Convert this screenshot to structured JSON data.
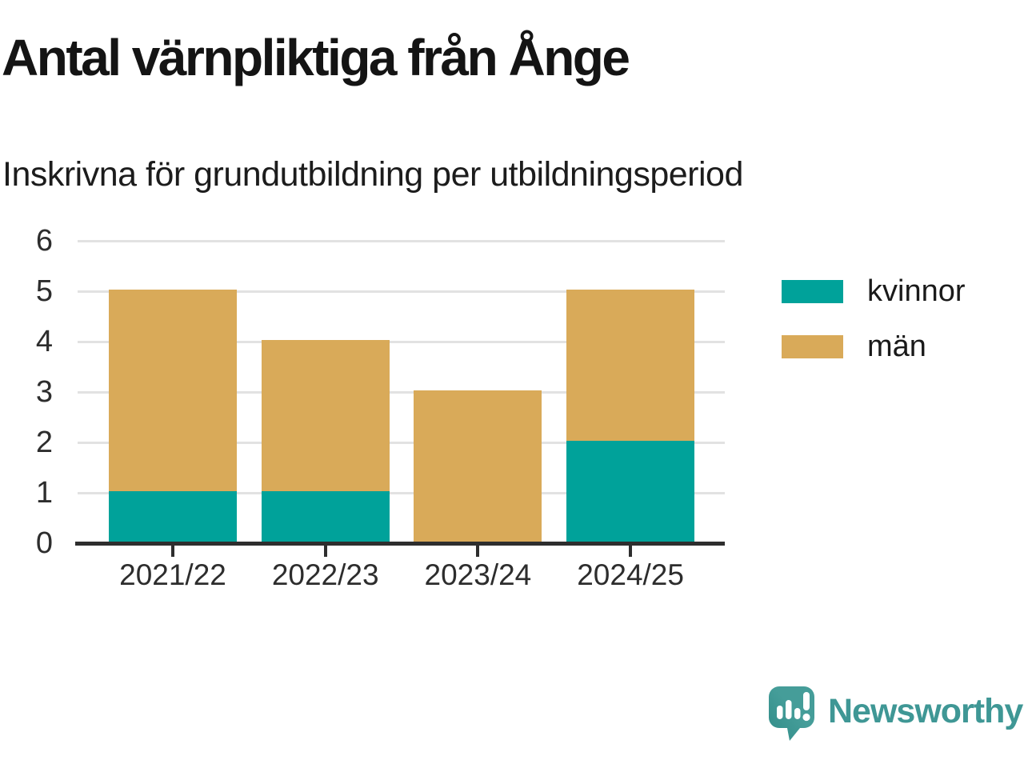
{
  "title": "Antal värnpliktiga från Ånge",
  "subtitle": "Inskrivna för grundutbildning per utbildningsperiod",
  "colors": {
    "kvinnor": "#00a29a",
    "man": "#d9aa59",
    "grid": "#e2e2e2",
    "axis": "#2e2e2e",
    "text": "#1a1a1a",
    "brand_teal": "#3f9795"
  },
  "chart_data": {
    "type": "bar",
    "stacked": true,
    "title": "Antal värnpliktiga från Ånge",
    "subtitle": "Inskrivna för grundutbildning per utbildningsperiod",
    "categories": [
      "2021/22",
      "2022/23",
      "2023/24",
      "2024/25"
    ],
    "series": [
      {
        "name": "kvinnor",
        "color": "#00a29a",
        "values": [
          1,
          1,
          0,
          2
        ]
      },
      {
        "name": "män",
        "color": "#d9aa59",
        "values": [
          4,
          3,
          3,
          3
        ]
      }
    ],
    "totals": [
      5,
      4,
      3,
      5
    ],
    "xlabel": "",
    "ylabel": "",
    "ylim": [
      0,
      6
    ],
    "y_ticks": [
      0,
      1,
      2,
      3,
      4,
      5,
      6
    ],
    "grid": "horizontal",
    "legend_position": "right"
  },
  "branding": {
    "logo_text": "Newsworthy",
    "logo_icon": "newsworthy-speech-bubble-bar-chart-icon"
  }
}
